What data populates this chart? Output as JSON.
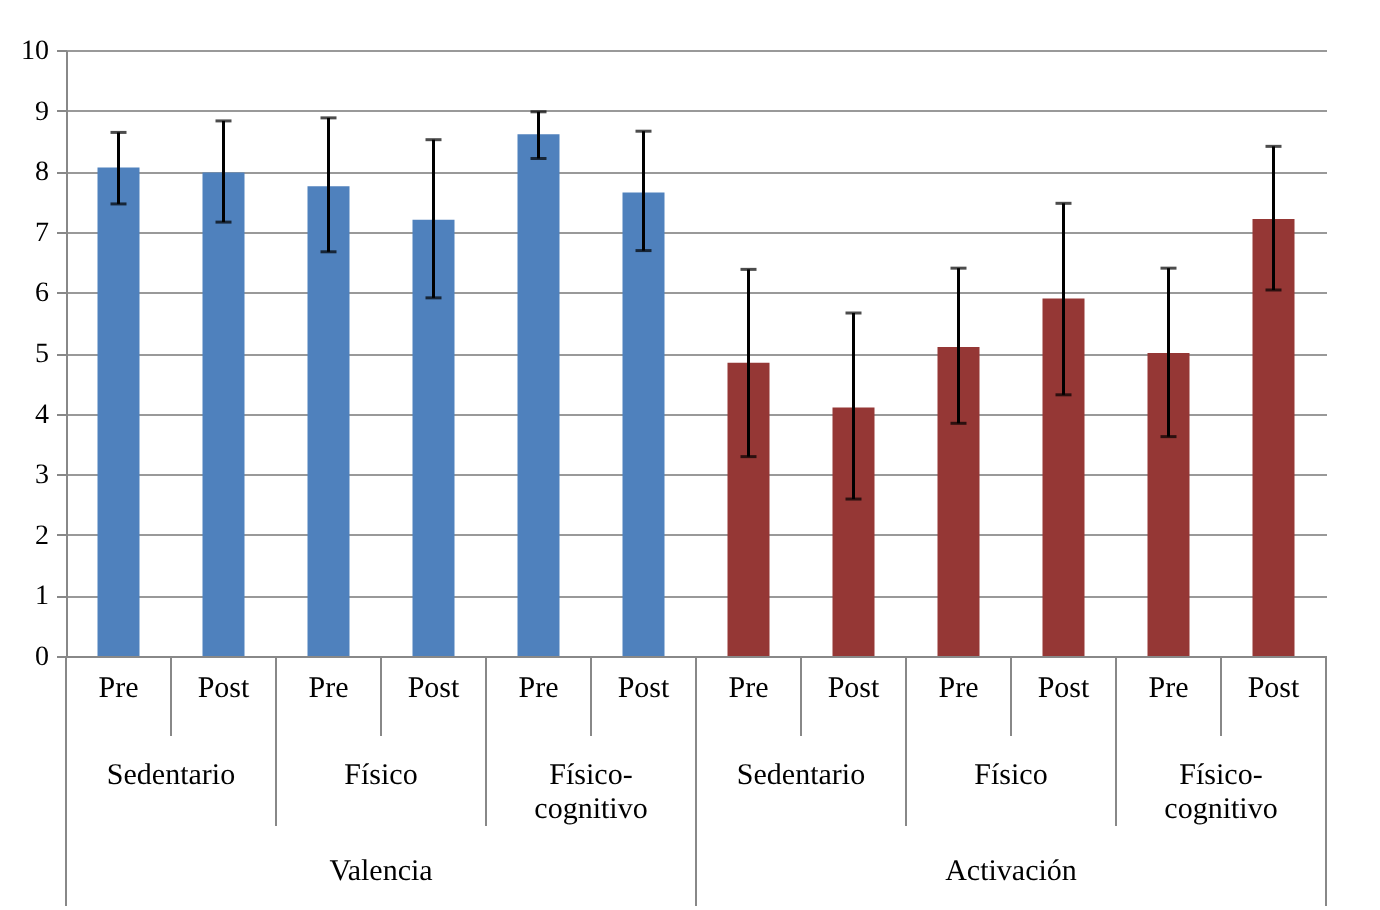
{
  "chart_data": {
    "type": "bar",
    "categories": [
      "Pre",
      "Post",
      "Pre",
      "Post",
      "Pre",
      "Post",
      "Pre",
      "Post",
      "Pre",
      "Post",
      "Pre",
      "Post"
    ],
    "values": [
      8.06,
      7.98,
      7.75,
      7.2,
      8.61,
      7.65,
      4.84,
      4.1,
      5.1,
      5.9,
      5.0,
      7.21
    ],
    "colors": [
      "#4f81bd",
      "#4f81bd",
      "#4f81bd",
      "#4f81bd",
      "#4f81bd",
      "#4f81bd",
      "#953735",
      "#953735",
      "#953735",
      "#953735",
      "#953735",
      "#953735"
    ],
    "errors": [
      [
        7.46,
        8.64
      ],
      [
        7.16,
        8.83
      ],
      [
        6.67,
        8.88
      ],
      [
        5.91,
        8.52
      ],
      [
        8.21,
        8.98
      ],
      [
        6.69,
        8.66
      ],
      [
        3.29,
        6.38
      ],
      [
        2.59,
        5.66
      ],
      [
        3.84,
        6.4
      ],
      [
        4.31,
        7.47
      ],
      [
        3.62,
        6.4
      ],
      [
        6.04,
        8.41
      ]
    ],
    "ylim": [
      0,
      10
    ],
    "yticks": [
      0,
      1,
      2,
      3,
      4,
      5,
      6,
      7,
      8,
      9,
      10
    ],
    "grid": "y",
    "annotations": [
      "Sedentario",
      "Físico",
      "Físico-cognitivo",
      "Sedentario",
      "Físico",
      "Físico-cognitivo",
      "Valencia",
      "Activación"
    ]
  }
}
